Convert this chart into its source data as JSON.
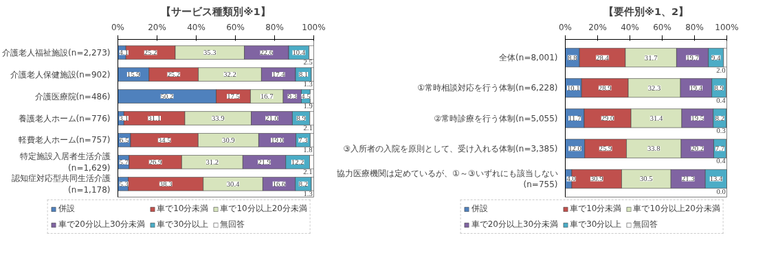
{
  "chart_data": [
    {
      "type": "bar",
      "orientation": "horizontal",
      "stacked": true,
      "title": "【サービス種類別※1】",
      "categories": [
        "介護老人福祉施設(n=2,273)",
        "介護老人保健施設(n=902)",
        "介護医療院(n=486)",
        "養護老人ホーム(n=776)",
        "軽費老人ホーム(n=757)",
        "特定施設入居者生活介護(n=1,629)",
        "認知症対応型共同生活介護(n=1,178)"
      ],
      "series": [
        {
          "name": "併設",
          "color": "#4f81bd",
          "values": [
            4.1,
            15.9,
            50.2,
            3.1,
            6.5,
            5.7,
            5.3
          ],
          "value_labels": [
            "4.1",
            "15.9",
            "50.2",
            "3.1",
            "6.5",
            "5.7",
            "5.3"
          ]
        },
        {
          "name": "車で10分未満",
          "color": "#c0504d",
          "values": [
            25.2,
            25.2,
            17.5,
            31.1,
            34.5,
            26.9,
            38.3
          ],
          "value_labels": [
            "25.2",
            "25.2",
            "17.5",
            "31.1",
            "34.5",
            "26.9",
            "38.3"
          ]
        },
        {
          "name": "車で10分以上20分未満",
          "color": "#d7e4bd",
          "values": [
            35.3,
            32.2,
            16.7,
            33.9,
            30.9,
            31.2,
            30.4
          ],
          "value_labels": [
            "35.3",
            "32.2",
            "16.7",
            "33.9",
            "30.9",
            "31.2",
            "30.4"
          ]
        },
        {
          "name": "車で20分以上30分未満",
          "color": "#8064a2",
          "values": [
            22.6,
            17.4,
            9.3,
            21.0,
            19.0,
            21.9,
            16.6
          ],
          "value_labels": [
            "22.6",
            "17.4",
            "9.3",
            "21.0",
            "19.0",
            "21.9",
            "16.6"
          ]
        },
        {
          "name": "車で30分以上",
          "color": "#4bacc6",
          "values": [
            10.4,
            8.1,
            4.5,
            8.9,
            7.3,
            12.2,
            8.2
          ],
          "value_labels": [
            "10.4",
            "8.1",
            "4.5",
            "8.9",
            "7.3",
            "12.2",
            "8.2"
          ]
        },
        {
          "name": "無回答",
          "color": "#ffffff",
          "values": [
            2.5,
            1.3,
            1.9,
            2.1,
            1.8,
            2.1,
            1.3
          ],
          "value_labels": [
            "2.5",
            "1.3",
            "1.9",
            "2.1",
            "1.8",
            "2.1",
            "1.3"
          ]
        }
      ],
      "xlim": [
        0,
        100
      ],
      "xticks": [
        {
          "value": 0,
          "label": "0%"
        },
        {
          "value": 20,
          "label": "20%"
        },
        {
          "value": 40,
          "label": "40%"
        },
        {
          "value": 60,
          "label": "60%"
        },
        {
          "value": 80,
          "label": "80%"
        },
        {
          "value": 100,
          "label": "100%"
        }
      ],
      "legend": "bottom",
      "grid": false
    },
    {
      "type": "bar",
      "orientation": "horizontal",
      "stacked": true,
      "title": "【要件別※1、2】",
      "categories": [
        "全体(n=8,001)",
        "①常時相談対応を行う体制(n=6,228)",
        "②常時診療を行う体制(n=5,055)",
        "③入所者の入院を原則として、受け入れる体制(n=3,385)",
        "協力医療機関は定めているが、①～③いずれにも該当しない(n=755)"
      ],
      "series": [
        {
          "name": "併設",
          "color": "#4f81bd",
          "values": [
            8.8,
            10.1,
            11.7,
            12.0,
            4.0
          ],
          "value_labels": [
            "8.8",
            "10.1",
            "11.7",
            "12.0",
            "4.0"
          ]
        },
        {
          "name": "車で10分未満",
          "color": "#c0504d",
          "values": [
            28.4,
            28.9,
            29.0,
            25.9,
            30.9
          ],
          "value_labels": [
            "28.4",
            "28.9",
            "29.0",
            "25.9",
            "30.9"
          ]
        },
        {
          "name": "車で10分以上20分未満",
          "color": "#d7e4bd",
          "values": [
            31.7,
            32.3,
            31.4,
            33.8,
            30.5
          ],
          "value_labels": [
            "31.7",
            "32.3",
            "31.4",
            "33.8",
            "30.5"
          ]
        },
        {
          "name": "車で20分以上30分未満",
          "color": "#8064a2",
          "values": [
            19.7,
            19.4,
            19.5,
            20.2,
            21.3
          ],
          "value_labels": [
            "19.7",
            "19.4",
            "19.5",
            "20.2",
            "21.3"
          ]
        },
        {
          "name": "車で30分以上",
          "color": "#4bacc6",
          "values": [
            9.4,
            8.9,
            8.2,
            7.7,
            13.4
          ],
          "value_labels": [
            "9.4",
            "8.9",
            "8.2",
            "7.7",
            "13.4"
          ]
        },
        {
          "name": "無回答",
          "color": "#ffffff",
          "values": [
            2.0,
            0.4,
            0.3,
            0.4,
            0.0
          ],
          "value_labels": [
            "2.0",
            "0.4",
            "0.3",
            "0.4",
            "0.0"
          ]
        }
      ],
      "xlim": [
        0,
        100
      ],
      "xticks": [
        {
          "value": 0,
          "label": "0%"
        },
        {
          "value": 20,
          "label": "20%"
        },
        {
          "value": 40,
          "label": "40%"
        },
        {
          "value": 60,
          "label": "60%"
        },
        {
          "value": 80,
          "label": "80%"
        },
        {
          "value": 100,
          "label": "100%"
        }
      ],
      "legend": "bottom",
      "grid": false
    }
  ]
}
